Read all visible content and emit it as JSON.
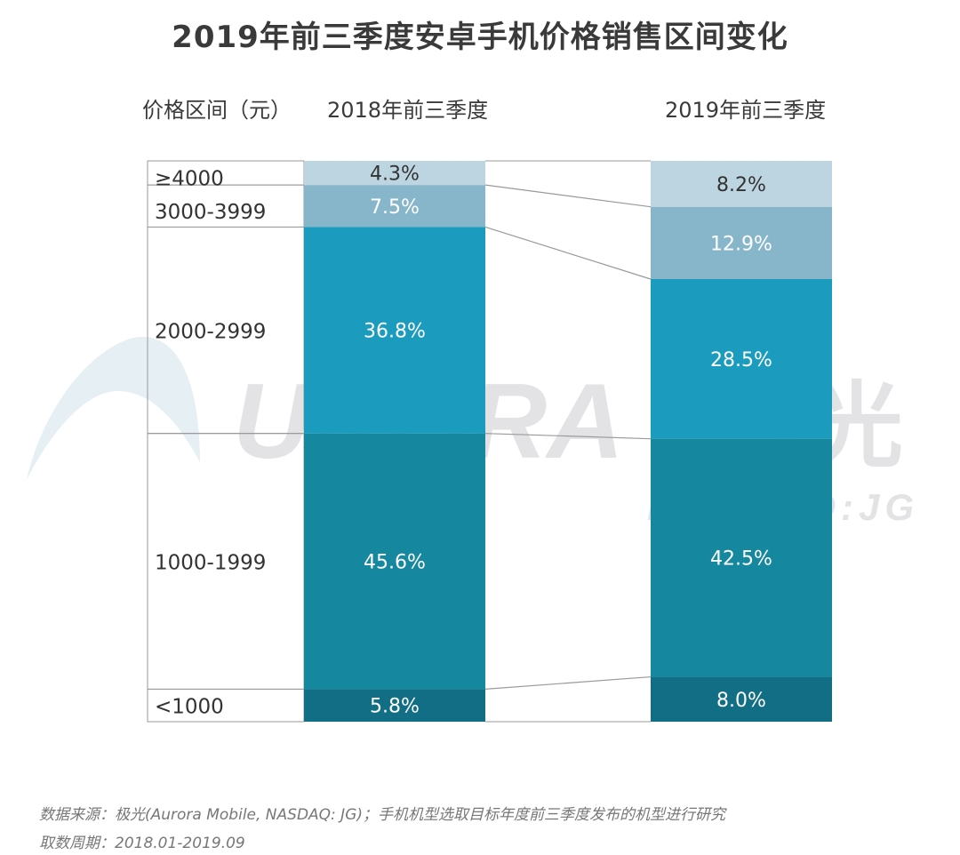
{
  "title": "2019年前三季度安卓手机价格销售区间变化",
  "range_header": "价格区间（元）",
  "watermark": {
    "brand": "URORA",
    "brand_cn": "极光",
    "ticker": "NASDAQ:JG"
  },
  "footer": {
    "source": "数据来源：极光(Aurora Mobile, NASDAQ: JG)；手机机型选取目标年度前三季度发布的机型进行研究",
    "period": "取数周期：2018.01-2019.09"
  },
  "colors": {
    "lt4000": "#bdd5e0",
    "r3000": "#87b6cb",
    "r2000": "#1b9bbd",
    "r1000": "#15879f",
    "lt1000": "#116e84",
    "watermark": "#e3e3e6",
    "connector": "#9a9a9a"
  },
  "chart_data": {
    "type": "bar",
    "stacked": true,
    "unit": "%",
    "categories": [
      "2018年前三季度",
      "2019年前三季度"
    ],
    "series": [
      {
        "name": "<1000",
        "values": [
          5.8,
          8.0
        ],
        "color_key": "lt1000"
      },
      {
        "name": "1000-1999",
        "values": [
          45.6,
          42.5
        ],
        "color_key": "r1000"
      },
      {
        "name": "2000-2999",
        "values": [
          36.8,
          28.5
        ],
        "color_key": "r2000"
      },
      {
        "name": "3000-3999",
        "values": [
          7.5,
          12.9
        ],
        "color_key": "r3000"
      },
      {
        "name": "≥4000",
        "values": [
          4.3,
          8.2
        ],
        "color_key": "lt4000"
      }
    ],
    "data_labels": [
      [
        "5.8%",
        "45.6%",
        "36.8%",
        "7.5%",
        "4.3%"
      ],
      [
        "8.0%",
        "42.5%",
        "28.5%",
        "12.9%",
        "8.2%"
      ]
    ]
  }
}
